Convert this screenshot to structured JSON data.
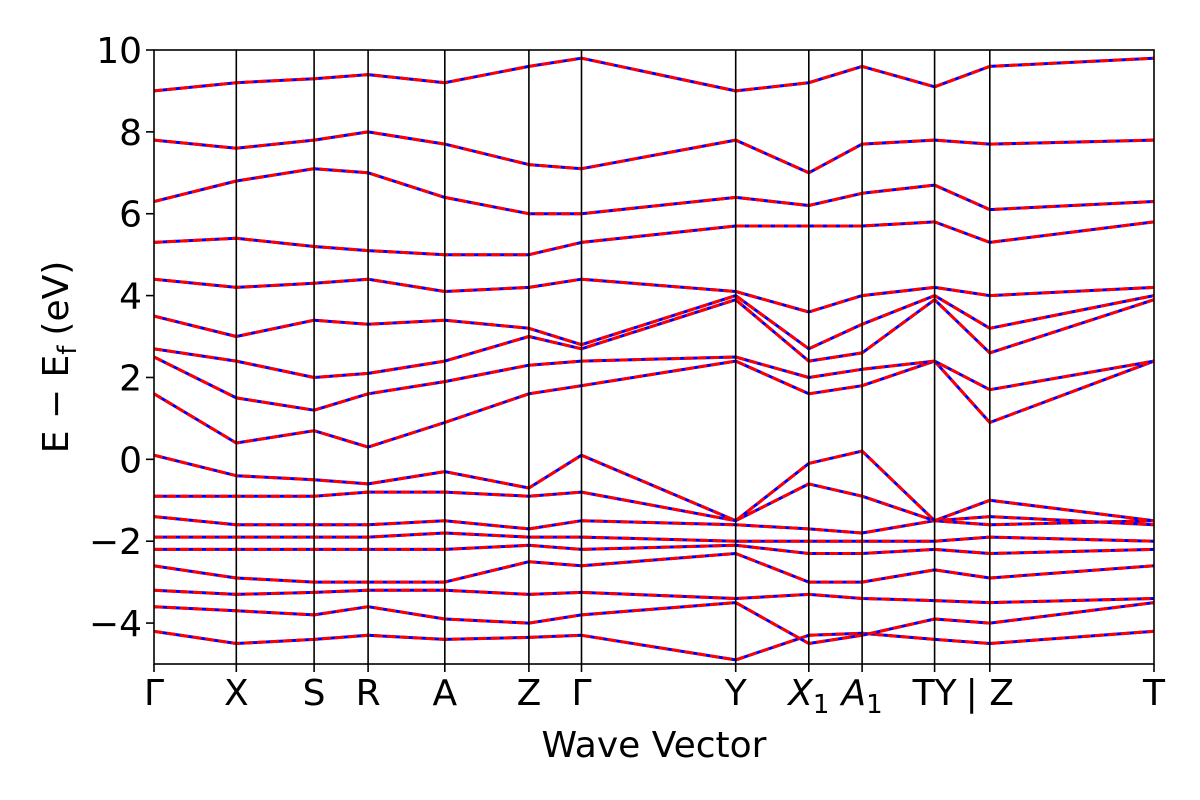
{
  "chart_data": {
    "type": "line",
    "title": "",
    "xlabel": "Wave Vector",
    "ylabel": "E − E",
    "ylabel_sub": "f",
    "ylabel_unit": "(eV)",
    "ylim": [
      -5,
      10
    ],
    "yticks": [
      {
        "value": 10,
        "label": "10"
      },
      {
        "value": 8,
        "label": "8"
      },
      {
        "value": 6,
        "label": "6"
      },
      {
        "value": 4,
        "label": "4"
      },
      {
        "value": 2,
        "label": "2"
      },
      {
        "value": 0,
        "label": "0"
      },
      {
        "value": -2,
        "label": "−2"
      },
      {
        "value": -4,
        "label": "−4"
      }
    ],
    "kpath": [
      {
        "label": "Γ",
        "sub": "",
        "k": 0.0
      },
      {
        "label": "X",
        "sub": "",
        "k": 0.0823
      },
      {
        "label": "S",
        "sub": "",
        "k": 0.1601
      },
      {
        "label": "R",
        "sub": "",
        "k": 0.2141
      },
      {
        "label": "A",
        "sub": "",
        "k": 0.2908
      },
      {
        "label": "Z",
        "sub": "",
        "k": 0.3749
      },
      {
        "label": "Γ",
        "sub": "",
        "k": 0.4275
      },
      {
        "label": "Y",
        "sub": "",
        "k": 0.5817
      },
      {
        "label": "X",
        "sub": "1",
        "k": 0.6548
      },
      {
        "label": "A",
        "sub": "1",
        "k": 0.7081
      },
      {
        "label": "TY",
        "sub": "",
        "k": 0.7806
      },
      {
        "label": "| Z",
        "sub": "",
        "k": 0.8358
      },
      {
        "label": "T",
        "sub": "",
        "k": 1.0
      }
    ],
    "series_styles": [
      {
        "color": "#0000ff",
        "style": "solid"
      },
      {
        "color": "#ff0000",
        "style": "dashed"
      }
    ],
    "bands": [
      [
        -4.2,
        -4.5,
        -4.4,
        -4.3,
        -4.4,
        -4.35,
        -4.3,
        -4.9,
        -4.3,
        -4.25,
        -4.4,
        -4.5,
        -4.2
      ],
      [
        -3.6,
        -3.7,
        -3.8,
        -3.6,
        -3.9,
        -4.0,
        -3.8,
        -3.5,
        -4.5,
        -4.3,
        -3.9,
        -4.0,
        -3.5
      ],
      [
        -3.2,
        -3.3,
        -3.25,
        -3.2,
        -3.2,
        -3.3,
        -3.25,
        -3.4,
        -3.3,
        -3.4,
        -3.45,
        -3.5,
        -3.4
      ],
      [
        -2.6,
        -2.9,
        -3.0,
        -3.0,
        -3.0,
        -2.5,
        -2.6,
        -2.3,
        -3.0,
        -3.0,
        -2.7,
        -2.9,
        -2.6
      ],
      [
        -2.2,
        -2.2,
        -2.2,
        -2.2,
        -2.2,
        -2.1,
        -2.2,
        -2.1,
        -2.3,
        -2.3,
        -2.2,
        -2.3,
        -2.2
      ],
      [
        -1.9,
        -1.9,
        -1.9,
        -1.9,
        -1.8,
        -1.9,
        -1.9,
        -2.0,
        -2.0,
        -2.0,
        -2.0,
        -1.9,
        -2.0
      ],
      [
        -1.4,
        -1.6,
        -1.6,
        -1.6,
        -1.5,
        -1.7,
        -1.5,
        -1.6,
        -1.7,
        -1.8,
        -1.5,
        -1.6,
        -1.5
      ],
      [
        -0.9,
        -0.9,
        -0.9,
        -0.8,
        -0.8,
        -0.9,
        -0.8,
        -1.5,
        -0.6,
        -0.9,
        -1.5,
        -1.4,
        -1.6
      ],
      [
        0.1,
        -0.4,
        -0.5,
        -0.6,
        -0.3,
        -0.7,
        0.1,
        -1.5,
        -0.1,
        0.2,
        -1.5,
        -1.0,
        -1.5
      ],
      [
        1.6,
        0.4,
        0.7,
        0.3,
        0.9,
        1.6,
        1.8,
        2.4,
        1.6,
        1.8,
        2.4,
        0.9,
        2.4
      ],
      [
        2.5,
        1.5,
        1.2,
        1.6,
        1.9,
        2.3,
        2.4,
        2.5,
        2.0,
        2.2,
        2.4,
        1.7,
        2.4
      ],
      [
        2.7,
        2.4,
        2.0,
        2.1,
        2.4,
        3.0,
        2.7,
        3.9,
        2.4,
        2.6,
        3.9,
        2.6,
        3.9
      ],
      [
        3.5,
        3.0,
        3.4,
        3.3,
        3.4,
        3.2,
        2.8,
        4.0,
        2.7,
        3.3,
        4.0,
        3.2,
        4.0
      ],
      [
        4.4,
        4.2,
        4.3,
        4.4,
        4.1,
        4.2,
        4.4,
        4.1,
        3.6,
        4.0,
        4.2,
        4.0,
        4.2
      ],
      [
        5.3,
        5.4,
        5.2,
        5.1,
        5.0,
        5.0,
        5.3,
        5.7,
        5.7,
        5.7,
        5.8,
        5.3,
        5.8
      ],
      [
        6.3,
        6.8,
        7.1,
        7.0,
        6.4,
        6.0,
        6.0,
        6.4,
        6.2,
        6.5,
        6.7,
        6.1,
        6.3
      ],
      [
        7.8,
        7.6,
        7.8,
        8.0,
        7.7,
        7.2,
        7.1,
        7.8,
        7.0,
        7.7,
        7.8,
        7.7,
        7.8
      ],
      [
        9.0,
        9.2,
        9.3,
        9.4,
        9.2,
        9.6,
        9.8,
        9.0,
        9.2,
        9.6,
        9.1,
        9.6,
        9.8
      ]
    ]
  }
}
